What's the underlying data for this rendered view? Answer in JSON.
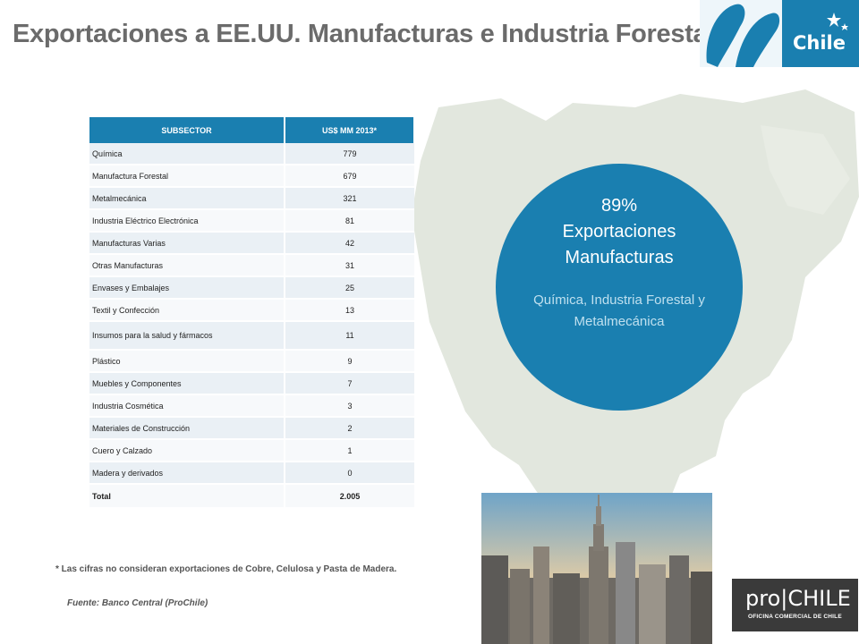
{
  "header": {
    "title": "Exportaciones a EE.UU. Manufacturas e Industria Forestal",
    "logo_text": "Chile"
  },
  "table": {
    "headers": [
      "SUBSECTOR",
      "US$ MM 2013*"
    ],
    "rows": [
      {
        "name": "Química",
        "value": "779"
      },
      {
        "name": "Manufactura Forestal",
        "value": "679"
      },
      {
        "name": "Metalmecánica",
        "value": "321"
      },
      {
        "name": "Industria Eléctrico Electrónica",
        "value": "81"
      },
      {
        "name": "Manufacturas Varias",
        "value": "42"
      },
      {
        "name": "Otras Manufacturas",
        "value": "31"
      },
      {
        "name": "Envases y Embalajes",
        "value": "25"
      },
      {
        "name": "Textil y Confección",
        "value": "13"
      },
      {
        "name": "Insumos para la salud y fármacos",
        "value": "11"
      },
      {
        "name": "Plástico",
        "value": "9"
      },
      {
        "name": "Muebles y Componentes",
        "value": "7"
      },
      {
        "name": "Industria Cosmética",
        "value": "3"
      },
      {
        "name": "Materiales de Construcción",
        "value": "2"
      },
      {
        "name": "Cuero y Calzado",
        "value": "1"
      },
      {
        "name": "Madera y derivados",
        "value": "0"
      }
    ],
    "total": {
      "name": "Total",
      "value": "2.005"
    }
  },
  "highlight": {
    "percent": "89%",
    "line1": "Exportaciones",
    "line2": "Manufacturas",
    "sub1": "Química, Industria Forestal y",
    "sub2": "Metalmecánica"
  },
  "footer": {
    "note": "* Las cifras no consideran exportaciones de Cobre, Celulosa y Pasta de Madera.",
    "source": "Fuente: Banco Central (ProChile)"
  },
  "prochile": {
    "word": "pro|CHILE",
    "subtitle": "OFICINA COMERCIAL DE CHILE"
  },
  "colors": {
    "accent": "#1a7fb0",
    "title": "#6b6b6b",
    "map": "#e3e8df"
  }
}
